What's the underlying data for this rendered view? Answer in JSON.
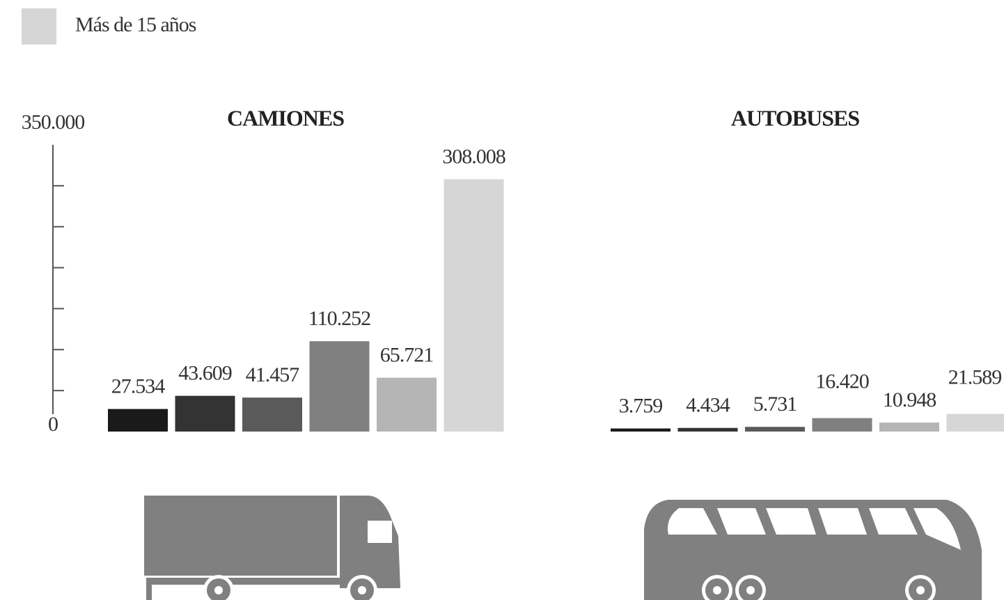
{
  "legend": {
    "label": "Más de 15 años",
    "color": "#d6d6d6"
  },
  "chart_data": [
    {
      "type": "bar",
      "title": "CAMIONES",
      "values": [
        27534,
        43609,
        41457,
        110252,
        65721,
        308008
      ],
      "value_labels": [
        "27.534",
        "43.609",
        "41.457",
        "110.252",
        "65.721",
        "308.008"
      ],
      "colors": [
        "#1a1a1a",
        "#333333",
        "#5a5a5a",
        "#808080",
        "#b5b5b5",
        "#d6d6d6"
      ],
      "ylim": [
        0,
        350000
      ],
      "yticks": [
        {
          "value": 0,
          "label": "0"
        },
        {
          "value": 350000,
          "label": "350.000"
        }
      ],
      "minor_yticks": [
        50000,
        100000,
        150000,
        200000,
        250000,
        300000
      ]
    },
    {
      "type": "bar",
      "title": "AUTOBUSES",
      "values": [
        3759,
        4434,
        5731,
        16420,
        10948,
        21589
      ],
      "value_labels": [
        "3.759",
        "4.434",
        "5.731",
        "16.420",
        "10.948",
        "21.589"
      ],
      "colors": [
        "#1a1a1a",
        "#333333",
        "#5a5a5a",
        "#808080",
        "#b5b5b5",
        "#d6d6d6"
      ],
      "ylim": [
        0,
        350000
      ]
    }
  ]
}
